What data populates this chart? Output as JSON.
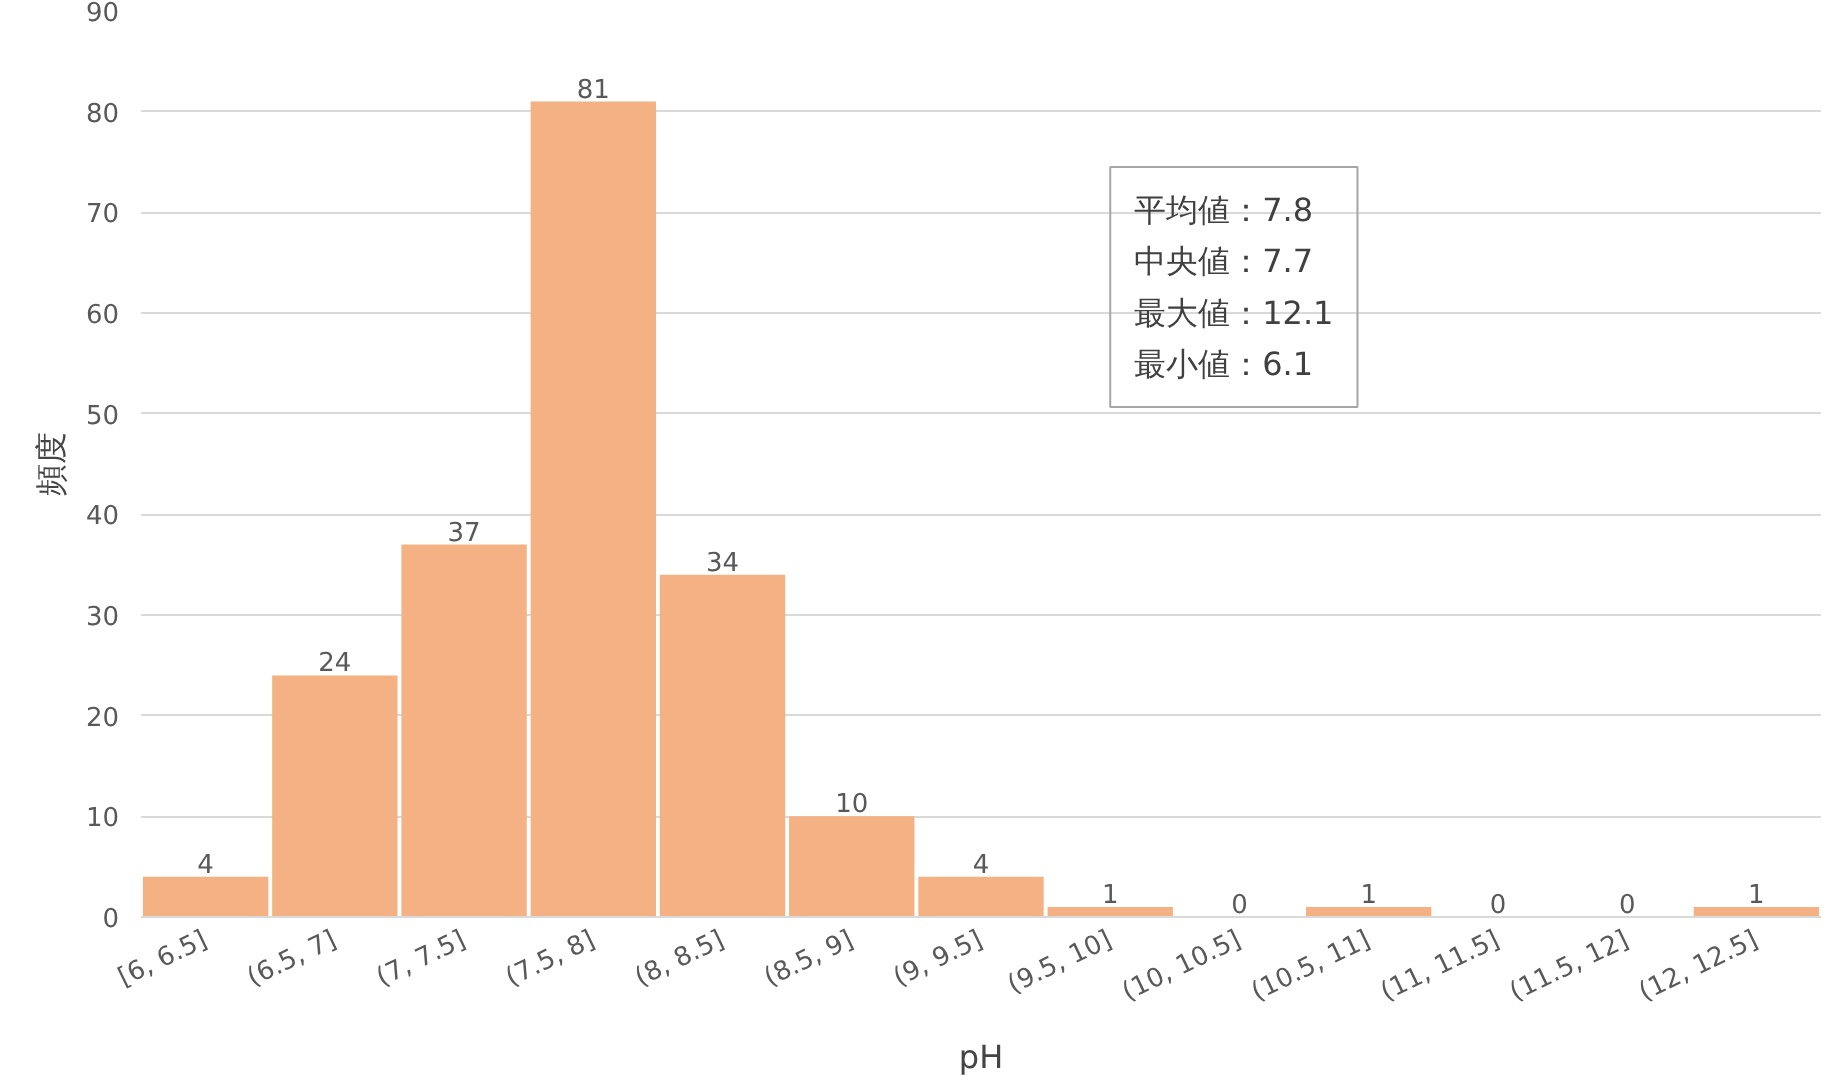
{
  "chart_data": {
    "type": "bar",
    "xlabel": "pH",
    "ylabel": "頻度",
    "categories": [
      "[6, 6.5]",
      "(6.5, 7]",
      "(7, 7.5]",
      "(7.5, 8]",
      "(8, 8.5]",
      "(8.5, 9]",
      "(9, 9.5]",
      "(9.5, 10]",
      "(10, 10.5]",
      "(10.5, 11]",
      "(11, 11.5]",
      "(11.5, 12]",
      "(12, 12.5]"
    ],
    "values": [
      4,
      24,
      37,
      81,
      34,
      10,
      4,
      1,
      0,
      1,
      0,
      0,
      1
    ],
    "color": "#f4b183",
    "ylim": [
      0,
      90
    ],
    "yticks": [
      0,
      10,
      20,
      30,
      40,
      50,
      60,
      70,
      80,
      90
    ],
    "grid": "y",
    "data_labels": true,
    "annotations": [
      "平均値：7.8",
      "中央値：7.7",
      "最大値：12.1",
      "最小値：6.1"
    ]
  }
}
